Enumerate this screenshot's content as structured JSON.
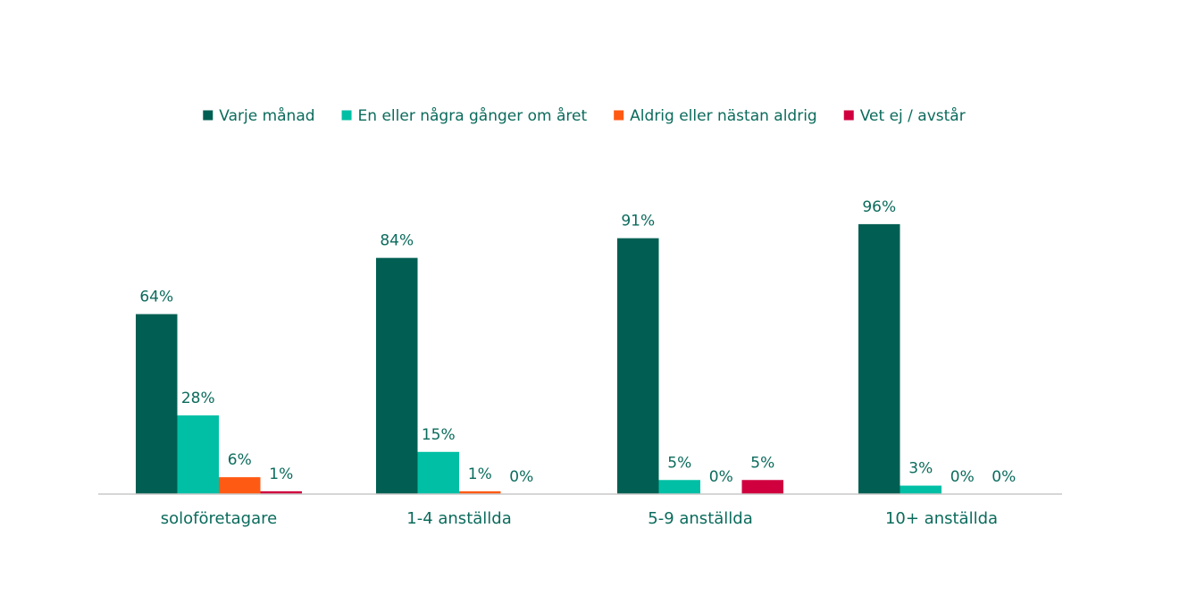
{
  "chart_data": {
    "type": "bar",
    "title": "",
    "xlabel": "",
    "ylabel": "",
    "ylim": [
      0,
      100
    ],
    "grid": false,
    "legend_position": "top-center",
    "categories": [
      "soloföretagare",
      "1-4 anställda",
      "5-9 anställda",
      "10+ anställda"
    ],
    "series": [
      {
        "name": "Varje månad",
        "color": "#005f52",
        "values": [
          64,
          84,
          91,
          96
        ],
        "labels": [
          "64%",
          "84%",
          "91%",
          "96%"
        ]
      },
      {
        "name": "En eller några gånger om året",
        "color": "#00bfa5",
        "values": [
          28,
          15,
          5,
          3
        ],
        "labels": [
          "28%",
          "15%",
          "5%",
          "3%"
        ]
      },
      {
        "name": "Aldrig eller nästan aldrig",
        "color": "#ff5a14",
        "values": [
          6,
          1,
          0,
          0
        ],
        "labels": [
          "6%",
          "1%",
          "0%",
          "0%"
        ]
      },
      {
        "name": "Vet ej / avstår",
        "color": "#d0003f",
        "values": [
          1,
          0,
          5,
          0
        ],
        "labels": [
          "1%",
          "0%",
          "5%",
          "0%"
        ]
      }
    ]
  }
}
